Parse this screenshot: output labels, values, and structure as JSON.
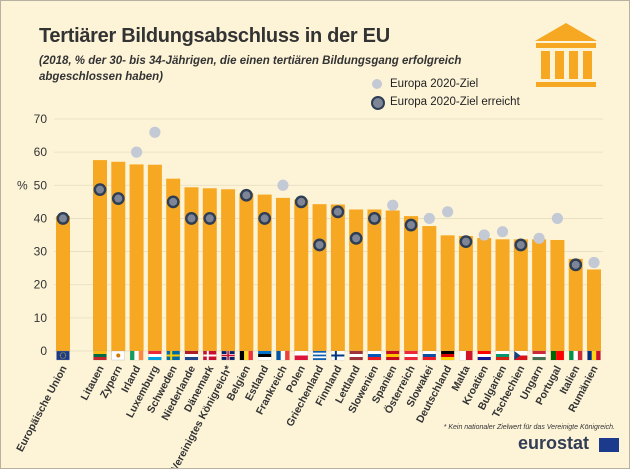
{
  "title": "Tertiärer Bildungsabschluss in der EU",
  "subtitle": "(2018, % der 30- bis 34-Jährigen, die einen tertiären Bildungsgang erfolgreich abgeschlossen haben)",
  "footnote": "* Kein nationaler Zielwert für das Vereinigte Königreich.",
  "logo_text": "eurostat",
  "icons": {
    "header": "museum-building-icon",
    "logo_flag": "eu-flag-icon"
  },
  "colors": {
    "background": "#fdf4d8",
    "bar": "#f7a823",
    "target_marker": "#c4c9d6",
    "reached_marker_fill": "#7d8597",
    "reached_marker_border": "#2d3e55",
    "axis_text": "#333333"
  },
  "chart_data": {
    "type": "bar",
    "title": "Tertiärer Bildungsabschluss in der EU",
    "ylabel": "%",
    "ylim": [
      0,
      70
    ],
    "yticks": [
      0,
      10,
      20,
      30,
      40,
      50,
      60,
      70
    ],
    "grid": true,
    "legend": {
      "position": "top-right",
      "entries": [
        "Europa 2020-Ziel",
        "Europa 2020-Ziel erreicht"
      ]
    },
    "categories": [
      "Europäische Union",
      "Litauen",
      "Zypern",
      "Irland",
      "Luxemburg",
      "Schweden",
      "Niederlande",
      "Dänemark",
      "Vereinigtes Königreich*",
      "Belgien",
      "Estland",
      "Frankreich",
      "Polen",
      "Griechenland",
      "Finnland",
      "Lettland",
      "Slowenien",
      "Spanien",
      "Österreich",
      "Slowakei",
      "Deutschland",
      "Malta",
      "Kroatien",
      "Bulgarien",
      "Tschechien",
      "Ungarn",
      "Portugal",
      "Italien",
      "Rumänien"
    ],
    "values": [
      40.7,
      57.6,
      57.1,
      56.3,
      56.2,
      52.0,
      49.4,
      49.1,
      48.8,
      47.6,
      47.2,
      46.2,
      45.7,
      44.3,
      44.2,
      42.7,
      42.7,
      42.4,
      40.7,
      37.7,
      34.9,
      34.7,
      34.1,
      33.7,
      33.7,
      33.7,
      33.5,
      27.8,
      24.6
    ],
    "targets": [
      40,
      48.7,
      46,
      60,
      66,
      45,
      40,
      40,
      null,
      47,
      40,
      50,
      45,
      32,
      42,
      34,
      40,
      44,
      38,
      40,
      42,
      33,
      35,
      36,
      32,
      34,
      40,
      26,
      26.7
    ],
    "target_reached": [
      true,
      true,
      true,
      false,
      false,
      true,
      true,
      true,
      null,
      true,
      true,
      false,
      true,
      true,
      true,
      true,
      true,
      false,
      true,
      false,
      false,
      true,
      false,
      false,
      true,
      false,
      false,
      true,
      false
    ],
    "country_codes": [
      "EU",
      "LT",
      "CY",
      "IE",
      "LU",
      "SE",
      "NL",
      "DK",
      "UK",
      "BE",
      "EE",
      "FR",
      "PL",
      "EL",
      "FI",
      "LV",
      "SI",
      "ES",
      "AT",
      "SK",
      "DE",
      "MT",
      "HR",
      "BG",
      "CZ",
      "HU",
      "PT",
      "IT",
      "RO"
    ]
  }
}
